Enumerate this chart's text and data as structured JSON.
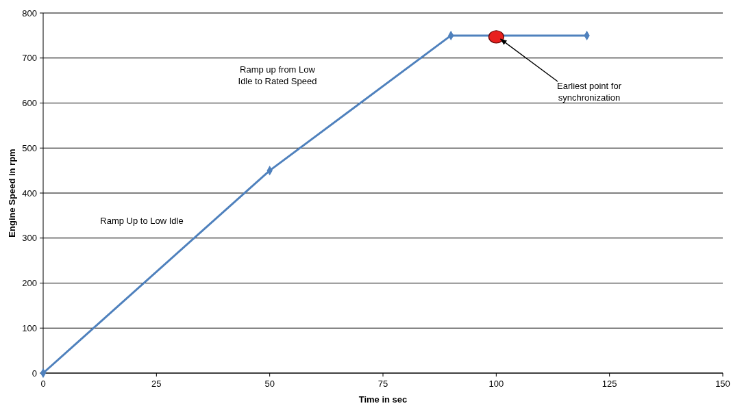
{
  "chart_data": {
    "type": "line",
    "xlabel": "Time in sec",
    "ylabel": "Engine Speed in rpm",
    "xlim": [
      0,
      150
    ],
    "xticks": [
      0,
      25,
      50,
      75,
      100,
      125,
      150
    ],
    "ylim": [
      0,
      800
    ],
    "yticks": [
      0,
      100,
      200,
      300,
      400,
      500,
      600,
      700,
      800
    ],
    "grid": "y",
    "series": [
      {
        "color": "#4f81bd",
        "marker": "diamond",
        "x": [
          0,
          50,
          90,
          120
        ],
        "values": [
          0,
          450,
          750,
          750
        ]
      },
      {
        "type": "scatter",
        "color": "#e8201e",
        "marker": "circle",
        "x": [
          100
        ],
        "values": [
          747
        ]
      }
    ],
    "annotations": [
      "Ramp Up to Low Idle",
      "Ramp up from Low Idle to Rated Speed",
      {
        "text": "Earliest point for synchronization",
        "x": 100,
        "y": 747
      }
    ]
  }
}
